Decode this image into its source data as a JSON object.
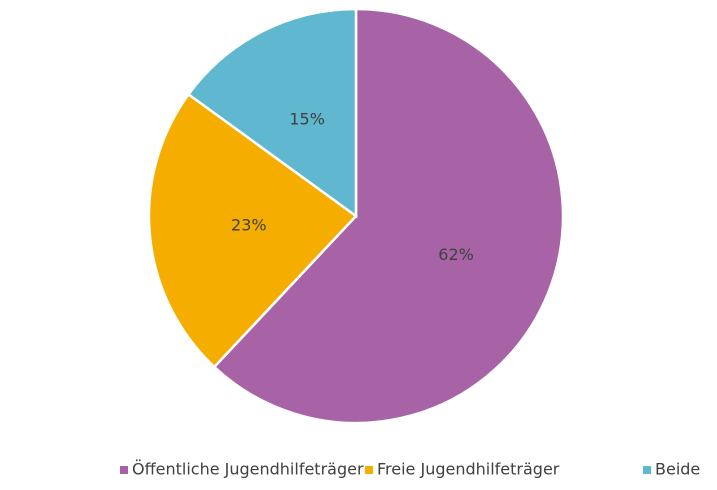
{
  "chart_data": {
    "type": "pie",
    "categories": [
      "Öffentliche Jugendhilfeträger",
      "Freie Jugendhilfeträger",
      "Beide"
    ],
    "values": [
      62,
      23,
      15
    ],
    "value_labels": [
      "62%",
      "23%",
      "15%"
    ],
    "colors": [
      "#a862a6",
      "#f5ae00",
      "#5fb8cf"
    ],
    "legend": "bottom"
  }
}
